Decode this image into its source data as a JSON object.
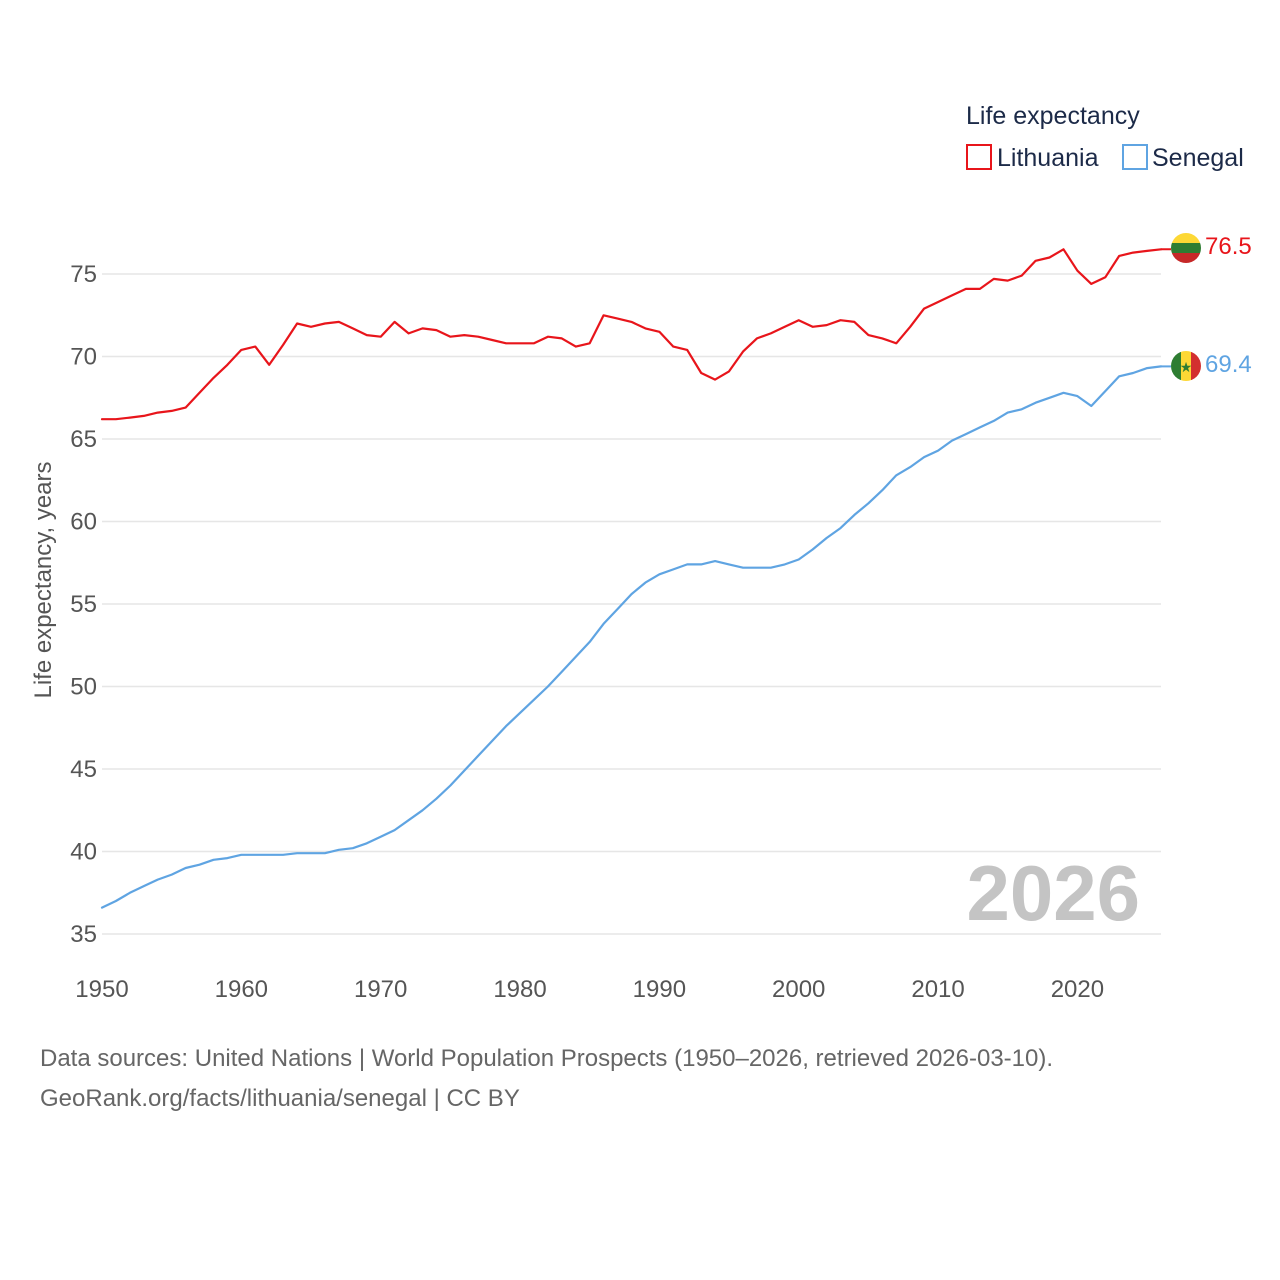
{
  "colors": {
    "lithuania": "#e8151b",
    "senegal": "#5fa4e2",
    "grid": "#e6e6e6",
    "text": "#555555"
  },
  "chart_data": {
    "type": "line",
    "title": "Life expectancy",
    "xlabel": "",
    "ylabel": "Life expectancy, years",
    "xlim": [
      1950,
      2026
    ],
    "ylim": [
      33,
      77
    ],
    "xticks": [
      1950,
      1960,
      1970,
      1980,
      1990,
      2000,
      2010,
      2020
    ],
    "yticks": [
      35,
      40,
      45,
      50,
      55,
      60,
      65,
      70,
      75
    ],
    "watermark": "2026",
    "series": [
      {
        "name": "Lithuania",
        "color": "#e8151b",
        "end_label": "76.5",
        "x": [
          1950,
          1951,
          1952,
          1953,
          1954,
          1955,
          1956,
          1957,
          1958,
          1959,
          1960,
          1961,
          1962,
          1963,
          1964,
          1965,
          1966,
          1967,
          1968,
          1969,
          1970,
          1971,
          1972,
          1973,
          1974,
          1975,
          1976,
          1977,
          1978,
          1979,
          1980,
          1981,
          1982,
          1983,
          1984,
          1985,
          1986,
          1987,
          1988,
          1989,
          1990,
          1991,
          1992,
          1993,
          1994,
          1995,
          1996,
          1997,
          1998,
          1999,
          2000,
          2001,
          2002,
          2003,
          2004,
          2005,
          2006,
          2007,
          2008,
          2009,
          2010,
          2011,
          2012,
          2013,
          2014,
          2015,
          2016,
          2017,
          2018,
          2019,
          2020,
          2021,
          2022,
          2023,
          2024,
          2025,
          2026
        ],
        "values": [
          66.2,
          66.2,
          66.3,
          66.4,
          66.6,
          66.7,
          66.9,
          67.8,
          68.7,
          69.5,
          70.4,
          70.6,
          69.5,
          70.7,
          72.0,
          71.8,
          72.0,
          72.1,
          71.7,
          71.3,
          71.2,
          72.1,
          71.4,
          71.7,
          71.6,
          71.2,
          71.3,
          71.2,
          71.0,
          70.8,
          70.8,
          70.8,
          71.2,
          71.1,
          70.6,
          70.8,
          72.5,
          72.3,
          72.1,
          71.7,
          71.5,
          70.6,
          70.4,
          69.0,
          68.6,
          69.1,
          70.3,
          71.1,
          71.4,
          71.8,
          72.2,
          71.8,
          71.9,
          72.2,
          72.1,
          71.3,
          71.1,
          70.8,
          71.8,
          72.9,
          73.3,
          73.7,
          74.1,
          74.1,
          74.7,
          74.6,
          74.9,
          75.8,
          76.0,
          76.5,
          75.2,
          74.4,
          74.8,
          76.1,
          76.3,
          76.4,
          76.5
        ]
      },
      {
        "name": "Senegal",
        "color": "#5fa4e2",
        "end_label": "69.4",
        "x": [
          1950,
          1951,
          1952,
          1953,
          1954,
          1955,
          1956,
          1957,
          1958,
          1959,
          1960,
          1961,
          1962,
          1963,
          1964,
          1965,
          1966,
          1967,
          1968,
          1969,
          1970,
          1971,
          1972,
          1973,
          1974,
          1975,
          1976,
          1977,
          1978,
          1979,
          1980,
          1981,
          1982,
          1983,
          1984,
          1985,
          1986,
          1987,
          1988,
          1989,
          1990,
          1991,
          1992,
          1993,
          1994,
          1995,
          1996,
          1997,
          1998,
          1999,
          2000,
          2001,
          2002,
          2003,
          2004,
          2005,
          2006,
          2007,
          2008,
          2009,
          2010,
          2011,
          2012,
          2013,
          2014,
          2015,
          2016,
          2017,
          2018,
          2019,
          2020,
          2021,
          2022,
          2023,
          2024,
          2025,
          2026
        ],
        "values": [
          36.6,
          37.0,
          37.5,
          37.9,
          38.3,
          38.6,
          39.0,
          39.2,
          39.5,
          39.6,
          39.8,
          39.8,
          39.8,
          39.8,
          39.9,
          39.9,
          39.9,
          40.1,
          40.2,
          40.5,
          40.9,
          41.3,
          41.9,
          42.5,
          43.2,
          44.0,
          44.9,
          45.8,
          46.7,
          47.6,
          48.4,
          49.2,
          50.0,
          50.9,
          51.8,
          52.7,
          53.8,
          54.7,
          55.6,
          56.3,
          56.8,
          57.1,
          57.4,
          57.4,
          57.6,
          57.4,
          57.2,
          57.2,
          57.2,
          57.4,
          57.7,
          58.3,
          59.0,
          59.6,
          60.4,
          61.1,
          61.9,
          62.8,
          63.3,
          63.9,
          64.3,
          64.9,
          65.3,
          65.7,
          66.1,
          66.6,
          66.8,
          67.2,
          67.5,
          67.8,
          67.6,
          67.0,
          67.9,
          68.8,
          69.0,
          69.3,
          69.4
        ]
      }
    ]
  },
  "footer": {
    "line1": "Data sources: United Nations | World Population Prospects (1950–2026, retrieved 2026-03-10).",
    "line2": "GeoRank.org/facts/lithuania/senegal | CC BY"
  }
}
